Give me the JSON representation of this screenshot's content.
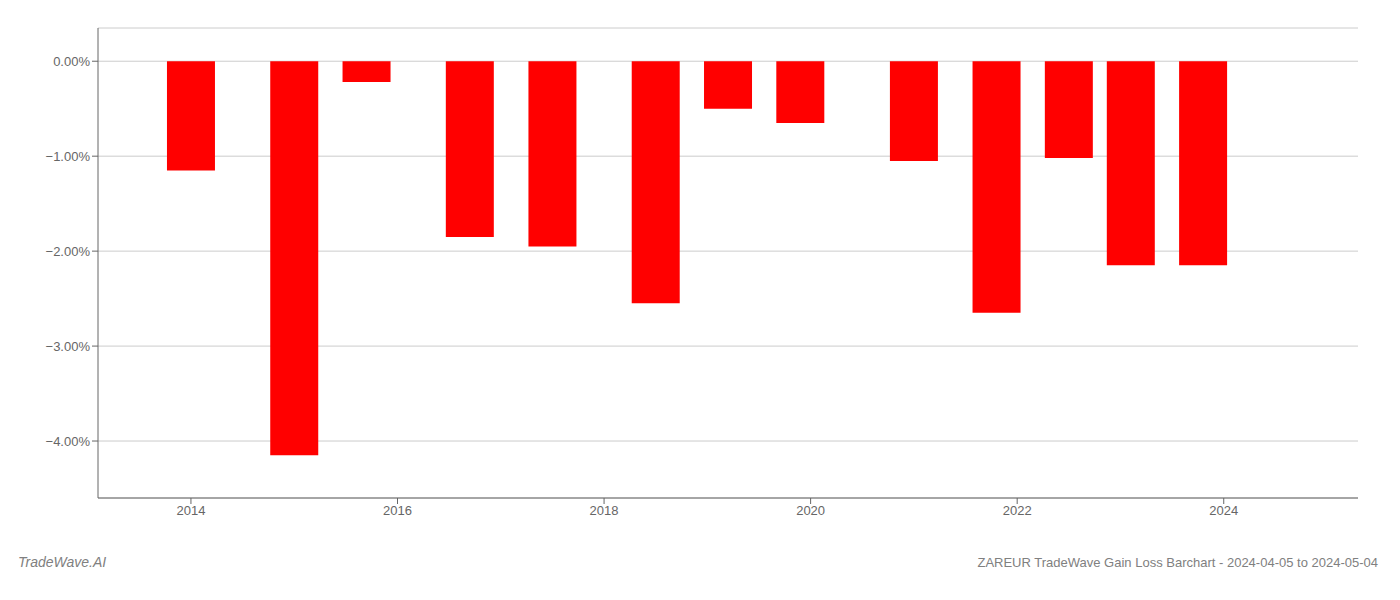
{
  "chart_data": {
    "type": "bar",
    "x": [
      2014,
      2015,
      2015.7,
      2016.7,
      2017.5,
      2018.5,
      2019.2,
      2019.9,
      2021.0,
      2021.8,
      2022.5,
      2023.1,
      2023.8
    ],
    "values": [
      -1.15,
      -4.15,
      -0.22,
      -1.85,
      -1.95,
      -2.55,
      -0.5,
      -0.65,
      -1.05,
      -2.65,
      -1.02,
      -2.15,
      -2.15
    ],
    "color": "#ff0000",
    "ylim": [
      -4.6,
      0.35
    ],
    "yticks": [
      {
        "value": 0.0,
        "label": "0.00%"
      },
      {
        "value": -1.0,
        "label": "−1.00%"
      },
      {
        "value": -2.0,
        "label": "−2.00%"
      },
      {
        "value": -3.0,
        "label": "−3.00%"
      },
      {
        "value": -4.0,
        "label": "−4.00%"
      }
    ],
    "xlim": [
      2013.1,
      2025.3
    ],
    "xticks": [
      2014,
      2016,
      2018,
      2020,
      2022,
      2024
    ],
    "grid": true,
    "annotations": [
      "TradeWave.AI",
      "ZAREUR TradeWave Gain Loss Barchart - 2024-04-05 to 2024-05-04"
    ]
  }
}
